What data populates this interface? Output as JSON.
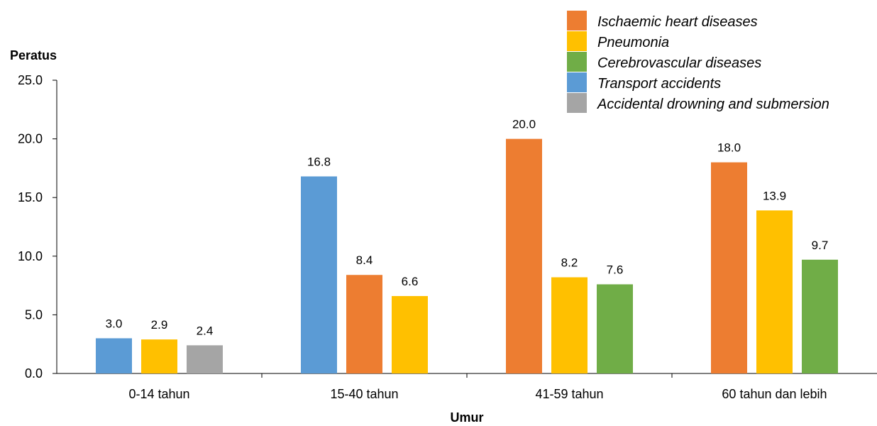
{
  "chart_data": {
    "type": "bar",
    "title": "",
    "ylabel": "Peratus",
    "xlabel": "Umur",
    "ylim": [
      0,
      25
    ],
    "yticks": [
      "0.0",
      "5.0",
      "10.0",
      "15.0",
      "20.0",
      "25.0"
    ],
    "grid": false,
    "legend_position": "top-right",
    "legend": [
      {
        "name": "Ischaemic heart diseases",
        "color": "#ED7D31"
      },
      {
        "name": "Pneumonia",
        "color": "#FFC000"
      },
      {
        "name": "Cerebrovascular diseases",
        "color": "#70AD47"
      },
      {
        "name": "Transport accidents",
        "color": "#5B9BD5"
      },
      {
        "name": "Accidental drowning and submersion",
        "color": "#A5A5A5"
      }
    ],
    "groups": [
      {
        "category": "0-14 tahun",
        "bars": [
          {
            "series": "Transport accidents",
            "value": 3.0,
            "label": "3.0"
          },
          {
            "series": "Pneumonia",
            "value": 2.9,
            "label": "2.9"
          },
          {
            "series": "Accidental drowning and submersion",
            "value": 2.4,
            "label": "2.4"
          }
        ]
      },
      {
        "category": "15-40 tahun",
        "bars": [
          {
            "series": "Transport accidents",
            "value": 16.8,
            "label": "16.8"
          },
          {
            "series": "Ischaemic heart diseases",
            "value": 8.4,
            "label": "8.4"
          },
          {
            "series": "Pneumonia",
            "value": 6.6,
            "label": "6.6"
          }
        ]
      },
      {
        "category": "41-59 tahun",
        "bars": [
          {
            "series": "Ischaemic heart diseases",
            "value": 20.0,
            "label": "20.0"
          },
          {
            "series": "Pneumonia",
            "value": 8.2,
            "label": "8.2"
          },
          {
            "series": "Cerebrovascular diseases",
            "value": 7.6,
            "label": "7.6"
          }
        ]
      },
      {
        "category": "60 tahun dan lebih",
        "bars": [
          {
            "series": "Ischaemic heart diseases",
            "value": 18.0,
            "label": "18.0"
          },
          {
            "series": "Pneumonia",
            "value": 13.9,
            "label": "13.9"
          },
          {
            "series": "Cerebrovascular diseases",
            "value": 9.7,
            "label": "9.7"
          }
        ]
      }
    ]
  }
}
